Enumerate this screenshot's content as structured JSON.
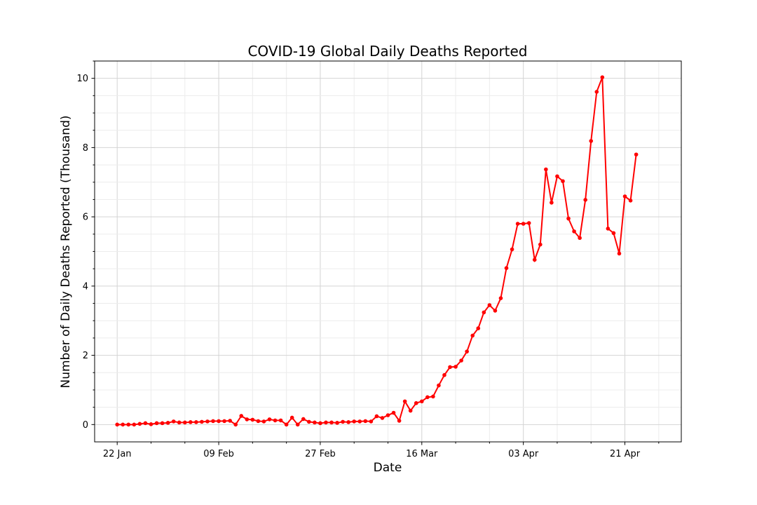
{
  "chart_data": {
    "type": "line",
    "title": "COVID-19 Global Daily Deaths Reported",
    "xlabel": "Date",
    "ylabel": "Number of Daily Deaths Reported (Thousand)",
    "x_start": "2020-01-22",
    "x_end": "2020-04-24",
    "xlim": [
      "2020-01-18",
      "2020-05-01"
    ],
    "ylim": [
      -0.5,
      10.5
    ],
    "x_ticks": [
      {
        "date": "2020-01-22",
        "label": "22 Jan"
      },
      {
        "date": "2020-02-09",
        "label": "09 Feb"
      },
      {
        "date": "2020-02-27",
        "label": "27 Feb"
      },
      {
        "date": "2020-03-16",
        "label": "16 Mar"
      },
      {
        "date": "2020-04-03",
        "label": "03 Apr"
      },
      {
        "date": "2020-04-21",
        "label": "21 Apr"
      }
    ],
    "y_ticks": [
      0,
      2,
      4,
      6,
      8,
      10
    ],
    "grid": true,
    "series": [
      {
        "color": "#ff0000",
        "values": [
          0.0,
          0.0,
          0.0,
          0.0,
          0.02,
          0.04,
          0.01,
          0.04,
          0.04,
          0.05,
          0.09,
          0.06,
          0.06,
          0.07,
          0.07,
          0.08,
          0.09,
          0.1,
          0.1,
          0.1,
          0.11,
          0.0,
          0.25,
          0.15,
          0.14,
          0.1,
          0.09,
          0.15,
          0.12,
          0.12,
          0.0,
          0.2,
          0.0,
          0.16,
          0.08,
          0.06,
          0.04,
          0.06,
          0.06,
          0.05,
          0.08,
          0.07,
          0.09,
          0.09,
          0.1,
          0.09,
          0.24,
          0.19,
          0.27,
          0.34,
          0.11,
          0.67,
          0.4,
          0.62,
          0.67,
          0.79,
          0.81,
          1.13,
          1.43,
          1.66,
          1.67,
          1.85,
          2.11,
          2.57,
          2.78,
          3.24,
          3.45,
          3.29,
          3.65,
          4.52,
          5.06,
          5.8,
          5.8,
          5.82,
          4.76,
          5.2,
          7.37,
          6.41,
          7.17,
          7.03,
          5.95,
          5.58,
          5.39,
          6.49,
          8.19,
          9.61,
          10.03,
          5.66,
          5.53,
          4.94,
          6.59,
          6.47,
          7.8
        ]
      }
    ]
  }
}
